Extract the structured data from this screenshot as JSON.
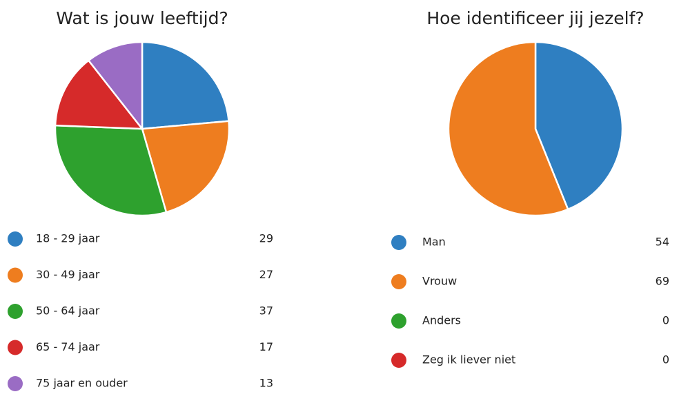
{
  "chart_data": [
    {
      "type": "pie",
      "title": "Wat is jouw leeftijd?",
      "categories": [
        "18 - 29 jaar",
        "30 - 49 jaar",
        "50 - 64 jaar",
        "65 - 74 jaar",
        "75 jaar en ouder"
      ],
      "values": [
        29,
        27,
        37,
        17,
        13
      ],
      "colors": [
        "#2f7fc1",
        "#ee7d1f",
        "#2ea12e",
        "#d62a2a",
        "#9a6cc4"
      ]
    },
    {
      "type": "pie",
      "title": "Hoe identificeer jij jezelf?",
      "categories": [
        "Man",
        "Vrouw",
        "Anders",
        "Zeg ik liever niet"
      ],
      "values": [
        54,
        69,
        0,
        0
      ],
      "colors": [
        "#2f7fc1",
        "#ee7d1f",
        "#2ea12e",
        "#d62a2a"
      ]
    }
  ]
}
